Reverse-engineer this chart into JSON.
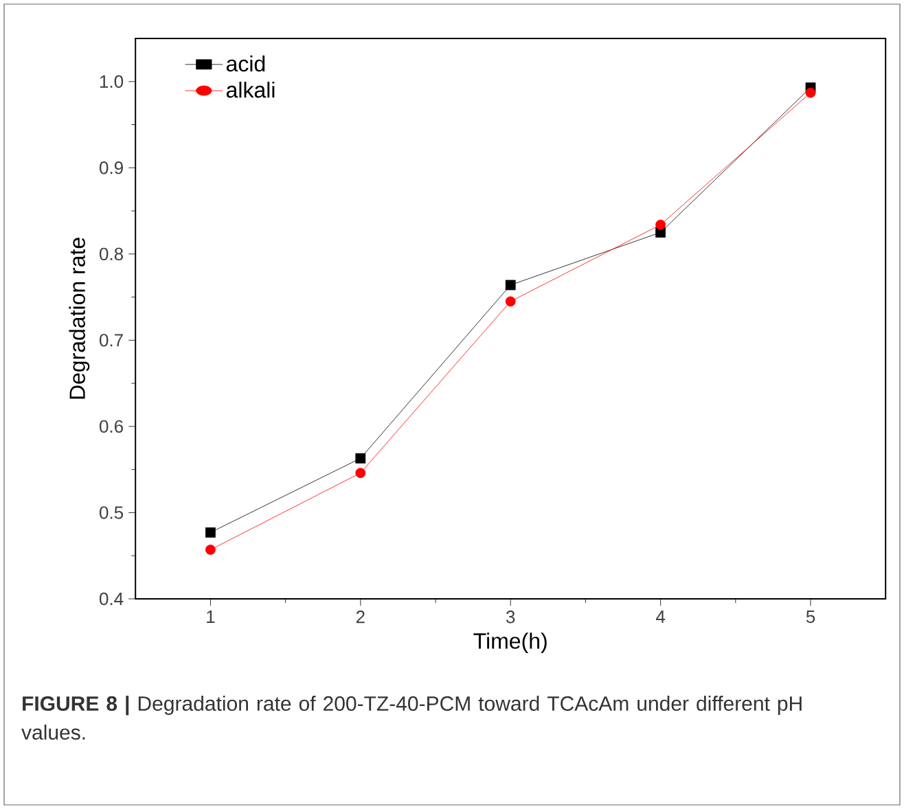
{
  "chart_data": {
    "type": "line",
    "xlabel": "Time(h)",
    "ylabel": "Degradation rate",
    "x": [
      1,
      2,
      3,
      4,
      5
    ],
    "series": [
      {
        "name": "acid",
        "color": "#000000",
        "marker": "square",
        "values": [
          0.477,
          0.563,
          0.764,
          0.825,
          0.993
        ]
      },
      {
        "name": "alkali",
        "color": "#ff0000",
        "marker": "circle",
        "values": [
          0.457,
          0.546,
          0.745,
          0.834,
          0.987
        ]
      }
    ],
    "xlim": [
      0.5,
      5.5
    ],
    "ylim": [
      0.4,
      1.05
    ],
    "xticks": [
      1,
      2,
      3,
      4,
      5
    ],
    "yticks": [
      0.4,
      0.5,
      0.6,
      0.7,
      0.8,
      0.9,
      {
        "value": 1,
        "label": "1.0"
      }
    ],
    "legend": "top left",
    "grid": false,
    "line_style": "solid",
    "annotations": [
      "**FIGURE 8 |** Degradation rate of 200-TZ-40-PCM toward TCAcAm under different pH values."
    ]
  }
}
